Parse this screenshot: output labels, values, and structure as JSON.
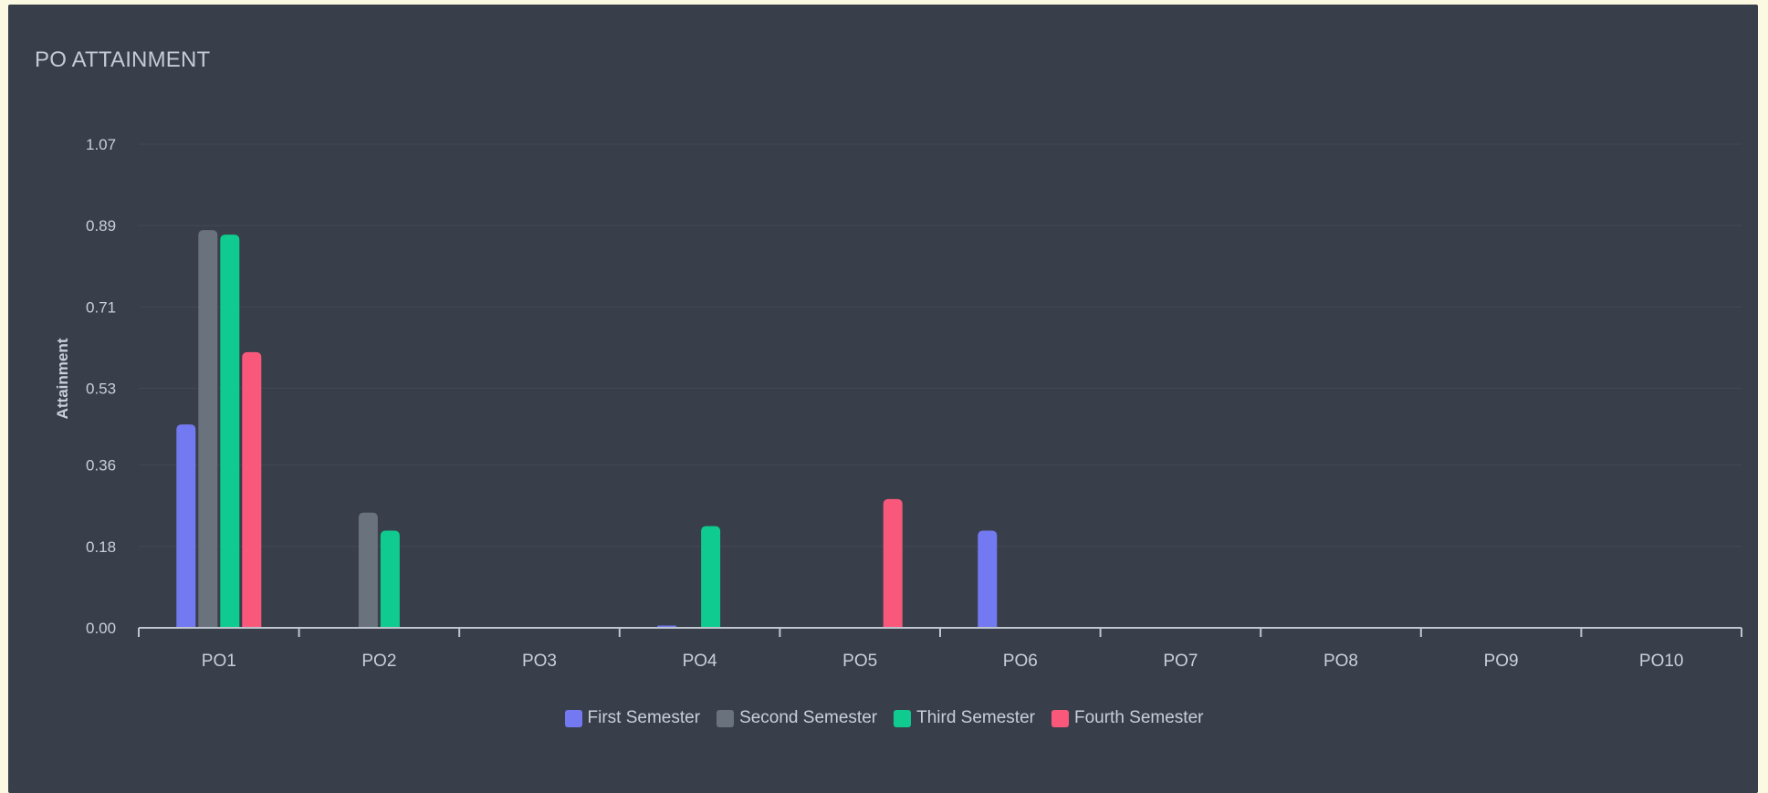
{
  "page": {
    "title": "PO ATTAINMENT"
  },
  "chart_data": {
    "type": "bar",
    "title": "PO ATTAINMENT",
    "xlabel": "",
    "ylabel": "Attainment",
    "categories": [
      "PO1",
      "PO2",
      "PO3",
      "PO4",
      "PO5",
      "PO6",
      "PO7",
      "PO8",
      "PO9",
      "PO10"
    ],
    "yticks": [
      "0.00",
      "0.18",
      "0.36",
      "0.53",
      "0.71",
      "0.89",
      "1.07"
    ],
    "ylim": [
      0,
      1.07
    ],
    "grid": true,
    "legend_position": "bottom-center",
    "series": [
      {
        "name": "First Semester",
        "color": "#7379f0",
        "values": [
          0.45,
          0,
          0,
          0.005,
          0,
          0.215,
          0,
          0,
          0,
          0
        ]
      },
      {
        "name": "Second Semester",
        "color": "#6a727d",
        "values": [
          0.88,
          0.255,
          0,
          0,
          0,
          0,
          0,
          0,
          0,
          0
        ]
      },
      {
        "name": "Third Semester",
        "color": "#0fcb8f",
        "values": [
          0.87,
          0.215,
          0,
          0.225,
          0,
          0,
          0,
          0,
          0,
          0
        ]
      },
      {
        "name": "Fourth Semester",
        "color": "#f9587a",
        "values": [
          0.61,
          0,
          0,
          0,
          0.285,
          0,
          0,
          0,
          0,
          0
        ]
      }
    ]
  }
}
